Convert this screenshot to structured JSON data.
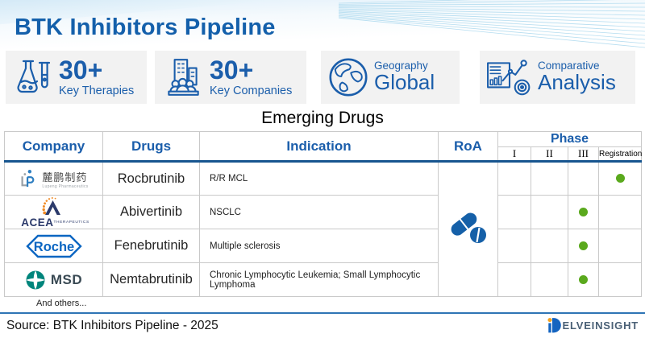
{
  "page": {
    "title": "BTK Inhibitors Pipeline"
  },
  "stats": [
    {
      "icon": "flask-icon",
      "value": "30+",
      "label": "Key Therapies"
    },
    {
      "icon": "companies-icon",
      "value": "30+",
      "label": "Key Companies"
    },
    {
      "icon": "globe-icon",
      "label": "Geography",
      "value": "Global"
    },
    {
      "icon": "analysis-icon",
      "label": "Comparative",
      "value": "Analysis"
    }
  ],
  "section": {
    "title": "Emerging Drugs"
  },
  "table": {
    "headers": {
      "company": "Company",
      "drugs": "Drugs",
      "indication": "Indication",
      "roa": "RoA",
      "phase": "Phase"
    },
    "phase_columns": [
      "I",
      "II",
      "III",
      "Registration"
    ],
    "roa_icon": "pills-icon",
    "dot_color": "#5aa91d",
    "rows": [
      {
        "company": "Lupeng Pharmaceuticals",
        "logo_text": "麓鹏制药",
        "logo_subtext": "Lupeng Pharmaceutics",
        "drug": "Rocbrutinib",
        "indication": "R/R MCL",
        "phase": "Registration"
      },
      {
        "company": "ACEA Therapeutics",
        "logo_text": "ACEA",
        "logo_subtext": "THERAPEUTICS",
        "drug": "Abivertinib",
        "indication": "NSCLC",
        "phase": "III"
      },
      {
        "company": "Roche",
        "logo_text": "Roche",
        "drug": "Fenebrutinib",
        "indication": "Multiple sclerosis",
        "phase": "III"
      },
      {
        "company": "MSD",
        "logo_text": "MSD",
        "drug": "Nemtabrutinib",
        "indication": "Chronic Lymphocytic Leukemia; Small Lymphocytic Lymphoma",
        "phase": "III"
      }
    ],
    "and_others": "And others..."
  },
  "footer": {
    "source": "Source: BTK Inhibitors Pipeline - 2025",
    "brand": "ELVEINSIGHT"
  },
  "colors": {
    "title_blue": "#1460ab",
    "accent_blue": "#1b5eab",
    "header_rule_blue": "#17558f",
    "footer_rule_blue": "#2e74b5",
    "dot_green": "#5aa91d",
    "stat_bg": "#f2f2f2",
    "roche_blue": "#0b66c2",
    "msd_teal": "#00857c",
    "acea_navy": "#2b3a6b",
    "acea_orange": "#f08a24",
    "pill_blue": "#1560a8"
  }
}
